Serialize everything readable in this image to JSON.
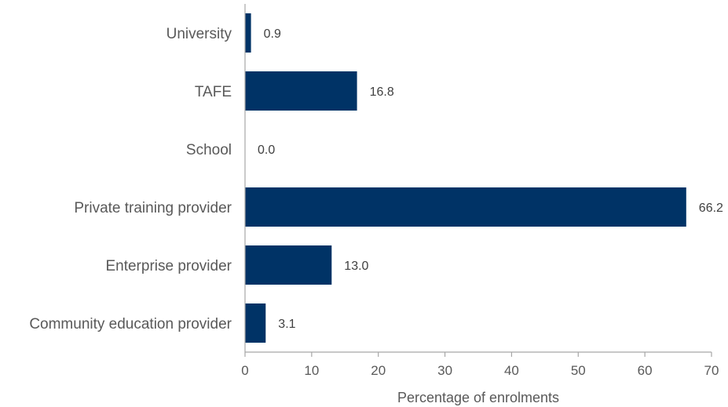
{
  "chart_data": {
    "type": "bar",
    "orientation": "horizontal",
    "categories": [
      "University",
      "TAFE",
      "School",
      "Private training provider",
      "Enterprise provider",
      "Community education provider"
    ],
    "values": [
      0.9,
      16.8,
      0.0,
      66.2,
      13.0,
      3.1
    ],
    "value_labels": [
      "0.9",
      "16.8",
      "0.0",
      "66.2",
      "13.0",
      "3.1"
    ],
    "xlabel": "Percentage of enrolments",
    "ylabel": "",
    "xlim": [
      0,
      70
    ],
    "xticks": [
      0,
      10,
      20,
      30,
      40,
      50,
      60,
      70
    ],
    "grid": false,
    "legend": "none",
    "bar_color": "#003366",
    "axis_color": "#a6a6a6"
  }
}
